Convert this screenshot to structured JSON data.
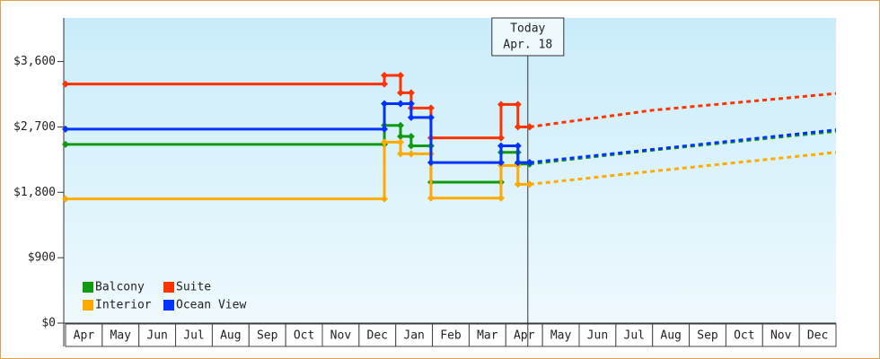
{
  "chart_data": {
    "type": "step-line",
    "months": [
      "Apr",
      "May",
      "Jun",
      "Jul",
      "Aug",
      "Sep",
      "Oct",
      "Nov",
      "Dec",
      "Jan",
      "Feb",
      "Mar",
      "Apr",
      "May",
      "Jun",
      "Jul",
      "Aug",
      "Sep",
      "Oct",
      "Nov",
      "Dec"
    ],
    "xlim": [
      0,
      21
    ],
    "ylim": [
      0,
      4200
    ],
    "yticks": [
      {
        "value": 0,
        "label": "$0"
      },
      {
        "value": 900,
        "label": "$900"
      },
      {
        "value": 1800,
        "label": "$1,800"
      },
      {
        "value": 2700,
        "label": "$2,700"
      },
      {
        "value": 3600,
        "label": "$3,600"
      }
    ],
    "today": {
      "x": 12.6,
      "label": "Today",
      "date": "Apr. 18"
    },
    "series": [
      {
        "name": "Balcony",
        "color": "#119911",
        "x": [
          0,
          8.69,
          9.13,
          9.42,
          9.96,
          11.87,
          12.33,
          12.65
        ],
        "values": [
          2460,
          2720,
          2570,
          2440,
          1940,
          2350,
          2190,
          2190
        ],
        "forecast": {
          "x": [
            12.65,
            16,
            21
          ],
          "values": [
            2190,
            2380,
            2640
          ]
        }
      },
      {
        "name": "Suite",
        "color": "#ff3300",
        "x": [
          0,
          8.69,
          9.13,
          9.42,
          9.96,
          11.87,
          12.33,
          12.65
        ],
        "values": [
          3290,
          3410,
          3170,
          2960,
          2550,
          3010,
          2700,
          2700
        ],
        "forecast": {
          "x": [
            12.65,
            16,
            21
          ],
          "values": [
            2700,
            2930,
            3160
          ]
        }
      },
      {
        "name": "Interior",
        "color": "#ffaa00",
        "x": [
          0,
          8.69,
          9.13,
          9.42,
          9.96,
          11.87,
          12.33,
          12.65
        ],
        "values": [
          1710,
          2490,
          2330,
          2330,
          1720,
          2170,
          1910,
          1910
        ],
        "forecast": {
          "x": [
            12.65,
            16,
            21
          ],
          "values": [
            1910,
            2090,
            2350
          ]
        }
      },
      {
        "name": "Ocean View",
        "color": "#0033ff",
        "x": [
          0,
          8.69,
          9.13,
          9.42,
          9.96,
          11.87,
          12.33,
          12.65
        ],
        "values": [
          2670,
          3020,
          3020,
          2830,
          2210,
          2440,
          2210,
          2210
        ],
        "forecast": {
          "x": [
            12.65,
            16,
            21
          ],
          "values": [
            2210,
            2390,
            2660
          ]
        }
      }
    ]
  }
}
